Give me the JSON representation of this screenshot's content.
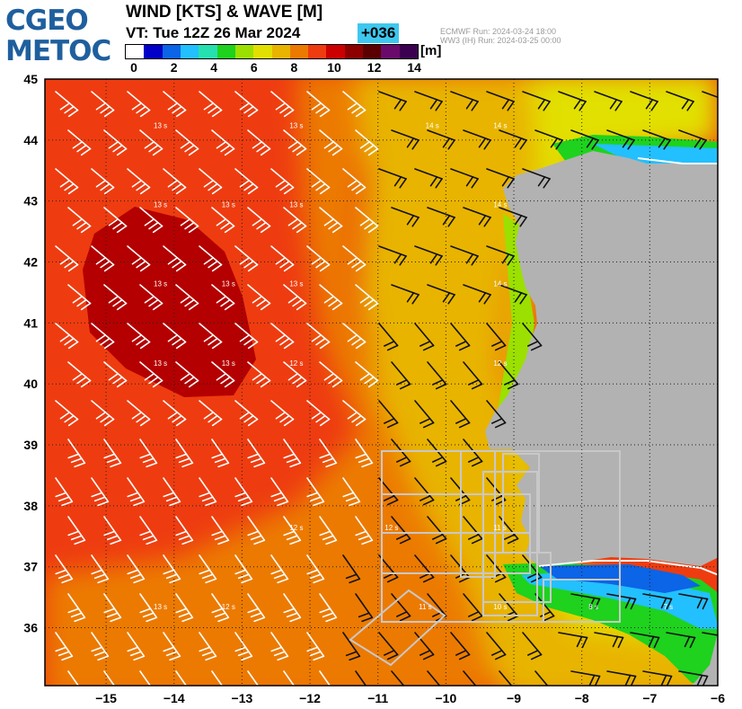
{
  "logo": {
    "line1": "CGEO",
    "line2": "METOC"
  },
  "header": {
    "title": "WIND [KTS] & WAVE [M]",
    "valid_time": "VT:  Tue 12Z 26 Mar 2024",
    "lead": "+036",
    "run1": "ECMWF    Run: 2024-03-24 18:00",
    "run2": "WW3 (IH) Run: 2024-03-25 00:00"
  },
  "colorbar": {
    "unit": "[m]",
    "ticks": [
      "0",
      "2",
      "4",
      "6",
      "8",
      "10",
      "12",
      "14"
    ],
    "colors": [
      "#ffffff",
      "#0000c8",
      "#0c64e6",
      "#22c0ff",
      "#26e0b0",
      "#1ed21e",
      "#9be000",
      "#e2e000",
      "#e8b400",
      "#ec7a00",
      "#ee3c10",
      "#cc0000",
      "#8c0000",
      "#5a0000",
      "#6a0a6a",
      "#3c0050"
    ]
  },
  "map": {
    "lat_labels": [
      "45",
      "44",
      "43",
      "42",
      "41",
      "40",
      "39",
      "38",
      "37",
      "36"
    ],
    "lon_labels": [
      "−15",
      "−14",
      "−13",
      "−12",
      "−11",
      "−10",
      "−9",
      "−8",
      "−7",
      "−6"
    ],
    "wave_labels": [
      {
        "text": "13 s",
        "lon": -14.3,
        "lat": 44.2
      },
      {
        "text": "13 s",
        "lon": -12.3,
        "lat": 44.2
      },
      {
        "text": "14 s",
        "lon": -10.3,
        "lat": 44.2
      },
      {
        "text": "14 s",
        "lon": -9.3,
        "lat": 44.2
      },
      {
        "text": "13 s",
        "lon": -14.3,
        "lat": 42.9
      },
      {
        "text": "13 s",
        "lon": -13.3,
        "lat": 42.9
      },
      {
        "text": "13 s",
        "lon": -12.3,
        "lat": 42.9
      },
      {
        "text": "14 s",
        "lon": -9.3,
        "lat": 42.9
      },
      {
        "text": "13 s",
        "lon": -14.3,
        "lat": 41.6
      },
      {
        "text": "13 s",
        "lon": -13.3,
        "lat": 41.6
      },
      {
        "text": "13 s",
        "lon": -12.3,
        "lat": 41.6
      },
      {
        "text": "14 s",
        "lon": -9.3,
        "lat": 41.6
      },
      {
        "text": "13 s",
        "lon": -14.3,
        "lat": 40.3
      },
      {
        "text": "13 s",
        "lon": -13.3,
        "lat": 40.3
      },
      {
        "text": "12 s",
        "lon": -12.3,
        "lat": 40.3
      },
      {
        "text": "12 s",
        "lon": -9.3,
        "lat": 40.3
      },
      {
        "text": "13 s",
        "lon": -14.3,
        "lat": 36.3
      },
      {
        "text": "12 s",
        "lon": -13.3,
        "lat": 36.3
      },
      {
        "text": "12 s",
        "lon": -12.3,
        "lat": 37.6
      },
      {
        "text": "12 s",
        "lon": -10.9,
        "lat": 37.6
      },
      {
        "text": "11 s",
        "lon": -9.3,
        "lat": 37.6
      },
      {
        "text": "11 s",
        "lon": -10.4,
        "lat": 36.3
      },
      {
        "text": "10 s",
        "lon": -9.3,
        "lat": 36.3
      },
      {
        "text": "8 s",
        "lon": -7.9,
        "lat": 36.3
      },
      {
        "text": "7 s",
        "lon": -6.8,
        "lat": 36.3
      }
    ]
  }
}
